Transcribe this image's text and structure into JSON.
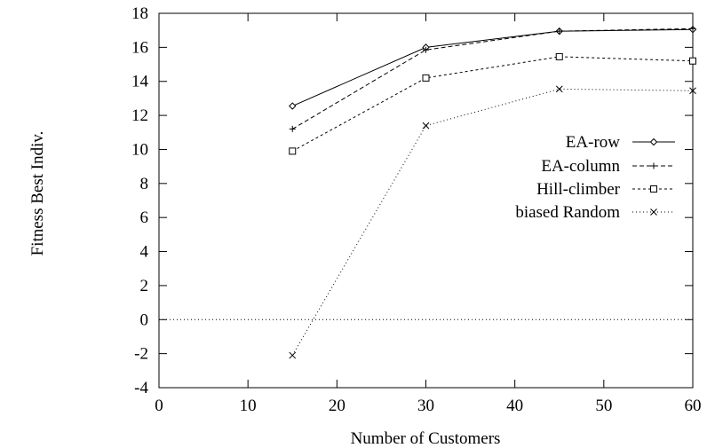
{
  "chart_data": {
    "type": "line",
    "xlabel": "Number of Customers",
    "ylabel": "Fitness Best Indiv.",
    "xlim": [
      0,
      60
    ],
    "ylim": [
      -4,
      18
    ],
    "xticks": [
      0,
      10,
      20,
      30,
      40,
      50,
      60
    ],
    "yticks": [
      -4,
      -2,
      0,
      2,
      4,
      6,
      8,
      10,
      12,
      14,
      16,
      18
    ],
    "grid": false,
    "legend_position": "right",
    "reference_line": {
      "y": 0,
      "style": "dotted"
    },
    "x": [
      15,
      30,
      45,
      60
    ],
    "series": [
      {
        "name": "EA-row",
        "values": [
          12.55,
          16.0,
          16.95,
          17.05
        ],
        "marker": "diamond",
        "dash": "solid"
      },
      {
        "name": "EA-column",
        "values": [
          11.2,
          15.85,
          16.95,
          17.1
        ],
        "marker": "plus",
        "dash": "dashed"
      },
      {
        "name": "Hill-climber",
        "values": [
          9.9,
          14.2,
          15.45,
          15.2
        ],
        "marker": "square",
        "dash": "short-dashed"
      },
      {
        "name": "biased Random",
        "values": [
          -2.1,
          11.4,
          13.55,
          13.45
        ],
        "marker": "cross",
        "dash": "dotted"
      }
    ]
  }
}
